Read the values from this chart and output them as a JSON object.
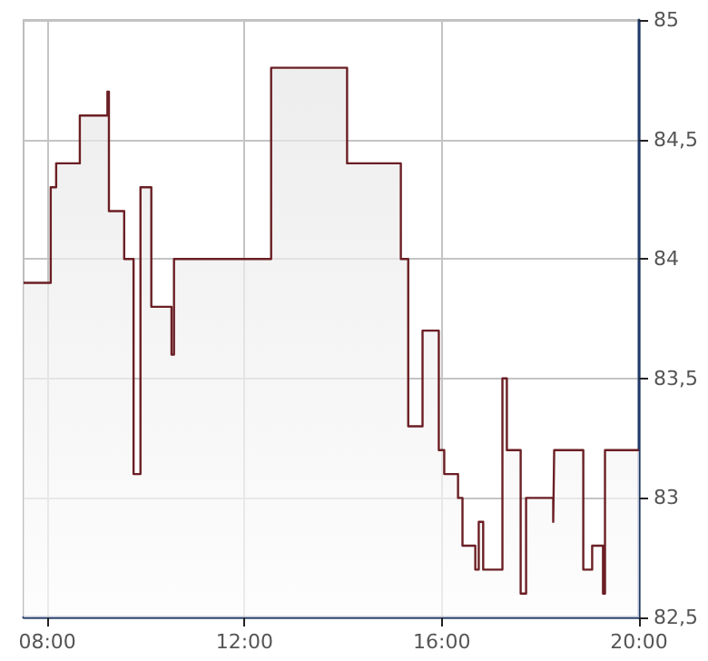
{
  "chart_data": {
    "type": "area",
    "x": [
      7.52,
      8.07,
      8.07,
      8.18,
      8.18,
      8.66,
      8.66,
      9.22,
      9.22,
      9.25,
      9.25,
      9.56,
      9.56,
      9.75,
      9.75,
      9.89,
      9.89,
      10.11,
      10.11,
      10.52,
      10.52,
      10.57,
      10.57,
      12.54,
      12.54,
      14.08,
      14.08,
      15.17,
      15.17,
      15.32,
      15.32,
      15.61,
      15.61,
      15.94,
      15.94,
      16.05,
      16.05,
      16.33,
      16.33,
      16.42,
      16.42,
      16.68,
      16.68,
      16.75,
      16.75,
      16.84,
      16.84,
      17.23,
      17.23,
      17.32,
      17.32,
      17.6,
      17.6,
      17.71,
      17.71,
      18.26,
      18.26,
      18.28,
      18.28,
      18.87,
      18.87,
      19.05,
      19.05,
      19.27,
      19.27,
      19.31,
      19.31,
      20
    ],
    "series": [
      {
        "color": "#6b1f24",
        "values": [
          83.9,
          83.9,
          84.3,
          84.3,
          84.4,
          84.4,
          84.6,
          84.6,
          84.7,
          84.7,
          84.2,
          84.2,
          84.0,
          84.0,
          83.1,
          83.1,
          84.3,
          84.3,
          83.8,
          83.8,
          83.6,
          83.6,
          84.0,
          84.0,
          84.8,
          84.8,
          84.4,
          84.4,
          84.0,
          84.0,
          83.3,
          83.3,
          83.7,
          83.7,
          83.2,
          83.2,
          83.1,
          83.1,
          83.0,
          83.0,
          82.8,
          82.8,
          82.7,
          82.7,
          82.9,
          82.9,
          82.7,
          82.7,
          83.5,
          83.5,
          83.2,
          83.2,
          82.6,
          82.6,
          83.0,
          83.0,
          82.9,
          82.9,
          83.2,
          83.2,
          82.7,
          82.7,
          82.8,
          82.8,
          82.6,
          82.6,
          83.2,
          83.2
        ]
      }
    ],
    "xlim": [
      7.52,
      20
    ],
    "xticks": [
      {
        "value": 8,
        "label": "08:00"
      },
      {
        "value": 12,
        "label": "12:00"
      },
      {
        "value": 16,
        "label": "16:00"
      },
      {
        "value": 20,
        "label": "20:00"
      }
    ],
    "ylim": [
      82.5,
      85
    ],
    "yticks": [
      {
        "value": 82.5,
        "label": "82,5"
      },
      {
        "value": 83,
        "label": "83"
      },
      {
        "value": 83.5,
        "label": "83,5"
      },
      {
        "value": 84,
        "label": "84"
      },
      {
        "value": 84.5,
        "label": "84,5"
      },
      {
        "value": 85,
        "label": "85"
      }
    ],
    "grid": true
  }
}
